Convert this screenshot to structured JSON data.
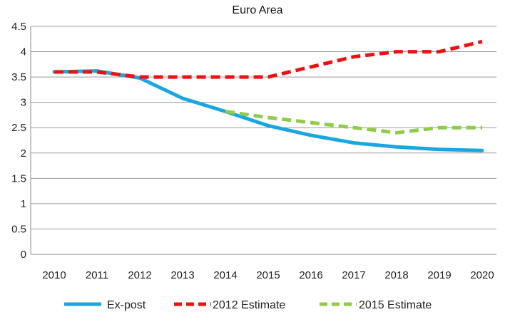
{
  "chart_data": {
    "type": "line",
    "title": "Euro Area",
    "xlabel": "",
    "ylabel": "",
    "x": [
      2010,
      2011,
      2012,
      2013,
      2014,
      2015,
      2016,
      2017,
      2018,
      2019,
      2020
    ],
    "x_tick_labels": [
      "2010",
      "2011",
      "2012",
      "2013",
      "2014",
      "2015",
      "2016",
      "2017",
      "2018",
      "2019",
      "2020"
    ],
    "y_tick_labels": [
      "0",
      "0.5",
      "1",
      "1.5",
      "2",
      "2.5",
      "3",
      "3.5",
      "4",
      "4.5"
    ],
    "ylim": [
      0,
      4.5
    ],
    "grid": "horizontal",
    "legend_position": "bottom",
    "series": [
      {
        "name": "Ex-post",
        "color": "#1aa7e1",
        "style": "solid",
        "x": [
          2010,
          2011,
          2012,
          2013,
          2014,
          2015,
          2016,
          2017,
          2018,
          2019,
          2020
        ],
        "values": [
          3.6,
          3.62,
          3.48,
          3.08,
          2.82,
          2.54,
          2.35,
          2.2,
          2.12,
          2.07,
          2.05
        ]
      },
      {
        "name": "2012 Estimate",
        "color": "#ee1111",
        "style": "dashed",
        "x": [
          2010,
          2011,
          2012,
          2013,
          2014,
          2015,
          2016,
          2017,
          2018,
          2019,
          2020
        ],
        "values": [
          3.6,
          3.6,
          3.5,
          3.5,
          3.5,
          3.5,
          3.7,
          3.9,
          4.0,
          4.0,
          4.2
        ]
      },
      {
        "name": "2015 Estimate",
        "color": "#8fcc4a",
        "style": "dashed",
        "x": [
          2014,
          2015,
          2016,
          2017,
          2018,
          2019,
          2020
        ],
        "values": [
          2.82,
          2.7,
          2.6,
          2.5,
          2.4,
          2.5,
          2.5
        ]
      }
    ]
  }
}
